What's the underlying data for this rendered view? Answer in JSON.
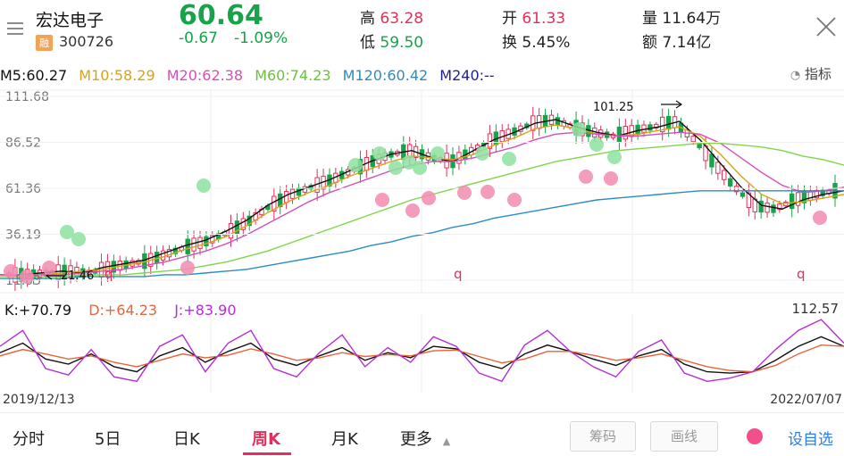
{
  "header": {
    "stock_name": "宏达电子",
    "badge": "融",
    "stock_code": "300726",
    "price": "60.64",
    "change": "-0.67",
    "change_pct": "-1.09%",
    "high_label": "高",
    "high_value": "63.28",
    "low_label": "低",
    "low_value": "59.50",
    "open_label": "开",
    "open_value": "61.33",
    "turnover_label": "换",
    "turnover_value": "5.45%",
    "volume_label": "量",
    "volume_value": "11.64万",
    "amount_label": "额",
    "amount_value": "7.14亿"
  },
  "ma": {
    "ma5": "M5:60.27",
    "ma10": "M10:58.29",
    "ma20": "M20:62.38",
    "ma60": "M60:74.23",
    "ma120": "M120:60.42",
    "ma240": "M240:--",
    "colors": {
      "ma5": "#111111",
      "ma10": "#d9a21b",
      "ma20": "#d64fb8",
      "ma60": "#7fd64a",
      "ma120": "#2b8cc4",
      "ma240": "#1f1f8f"
    }
  },
  "indicator_button": "指标",
  "chart_labels": {
    "y_ticks": [
      "111.68",
      "86.52",
      "61.36",
      "36.19",
      "11.03"
    ],
    "max_marker": "101.25",
    "min_marker": "21.46",
    "q_marker": "q"
  },
  "kdj": {
    "k": "K:+70.79",
    "d": "D:+64.23",
    "j": "J:+83.90",
    "max": "112.57"
  },
  "dates": {
    "start": "2019/12/13",
    "end": "2022/07/07"
  },
  "tabs": [
    "分时",
    "5日",
    "日K",
    "周K",
    "月K",
    "更多"
  ],
  "active_tab": "周K",
  "buttons": {
    "chip": "筹码",
    "draw": "画线",
    "self_select": "设自选"
  },
  "chart_data": {
    "type": "line",
    "title": "",
    "ylim": [
      11.03,
      111.68
    ],
    "series": [
      {
        "name": "M5",
        "values": [
          14,
          14,
          15,
          16,
          15,
          18,
          20,
          22,
          26,
          30,
          33,
          38,
          44,
          52,
          58,
          62,
          66,
          71,
          76,
          80,
          82,
          78,
          76,
          82,
          88,
          92,
          97,
          99,
          95,
          92,
          90,
          93,
          95,
          98,
          88,
          75,
          62,
          52,
          50,
          55,
          58,
          60
        ]
      },
      {
        "name": "M10",
        "values": [
          14,
          14,
          14,
          15,
          16,
          17,
          19,
          21,
          24,
          28,
          31,
          35,
          41,
          48,
          54,
          59,
          63,
          68,
          72,
          76,
          79,
          78,
          77,
          80,
          85,
          89,
          94,
          96,
          94,
          91,
          90,
          91,
          93,
          95,
          90,
          80,
          68,
          58,
          53,
          54,
          56,
          58
        ]
      },
      {
        "name": "M20",
        "values": [
          14,
          14,
          14,
          14,
          15,
          16,
          17,
          19,
          21,
          24,
          27,
          31,
          36,
          42,
          48,
          54,
          59,
          63,
          67,
          71,
          74,
          76,
          76,
          78,
          81,
          84,
          88,
          91,
          92,
          91,
          90,
          90,
          91,
          92,
          91,
          86,
          78,
          70,
          63,
          59,
          60,
          62
        ]
      },
      {
        "name": "M60",
        "values": [
          13,
          13,
          13,
          13,
          14,
          14,
          14,
          15,
          16,
          17,
          19,
          21,
          24,
          27,
          31,
          35,
          39,
          43,
          47,
          51,
          55,
          58,
          61,
          64,
          67,
          70,
          73,
          76,
          78,
          80,
          82,
          83,
          84,
          85,
          86,
          86,
          85,
          84,
          82,
          79,
          77,
          74
        ]
      },
      {
        "name": "M120",
        "values": [
          12,
          12,
          12,
          12,
          13,
          13,
          13,
          13,
          14,
          14,
          15,
          16,
          17,
          19,
          21,
          23,
          25,
          27,
          30,
          32,
          35,
          37,
          40,
          42,
          45,
          47,
          49,
          51,
          53,
          55,
          56,
          57,
          58,
          59,
          60,
          60,
          60,
          60,
          60,
          60,
          60,
          60
        ]
      }
    ],
    "kdj_series": [
      {
        "name": "K",
        "values": [
          60,
          75,
          50,
          42,
          58,
          38,
          30,
          55,
          68,
          45,
          62,
          75,
          50,
          40,
          55,
          68,
          48,
          60,
          52,
          70,
          66,
          45,
          35,
          58,
          72,
          62,
          50,
          40,
          55,
          65,
          42,
          30,
          28,
          30,
          48,
          70,
          85,
          70
        ]
      },
      {
        "name": "D",
        "values": [
          55,
          65,
          58,
          50,
          55,
          45,
          38,
          48,
          58,
          52,
          56,
          66,
          58,
          48,
          52,
          60,
          54,
          57,
          55,
          63,
          64,
          54,
          44,
          50,
          62,
          62,
          56,
          48,
          52,
          58,
          48,
          38,
          32,
          30,
          40,
          58,
          72,
          70
        ]
      },
      {
        "name": "J",
        "values": [
          70,
          95,
          35,
          25,
          65,
          22,
          15,
          70,
          88,
          30,
          75,
          95,
          35,
          22,
          60,
          88,
          38,
          68,
          45,
          85,
          70,
          28,
          15,
          72,
          95,
          62,
          38,
          22,
          62,
          80,
          28,
          15,
          20,
          30,
          65,
          95,
          112,
          75
        ]
      }
    ]
  }
}
